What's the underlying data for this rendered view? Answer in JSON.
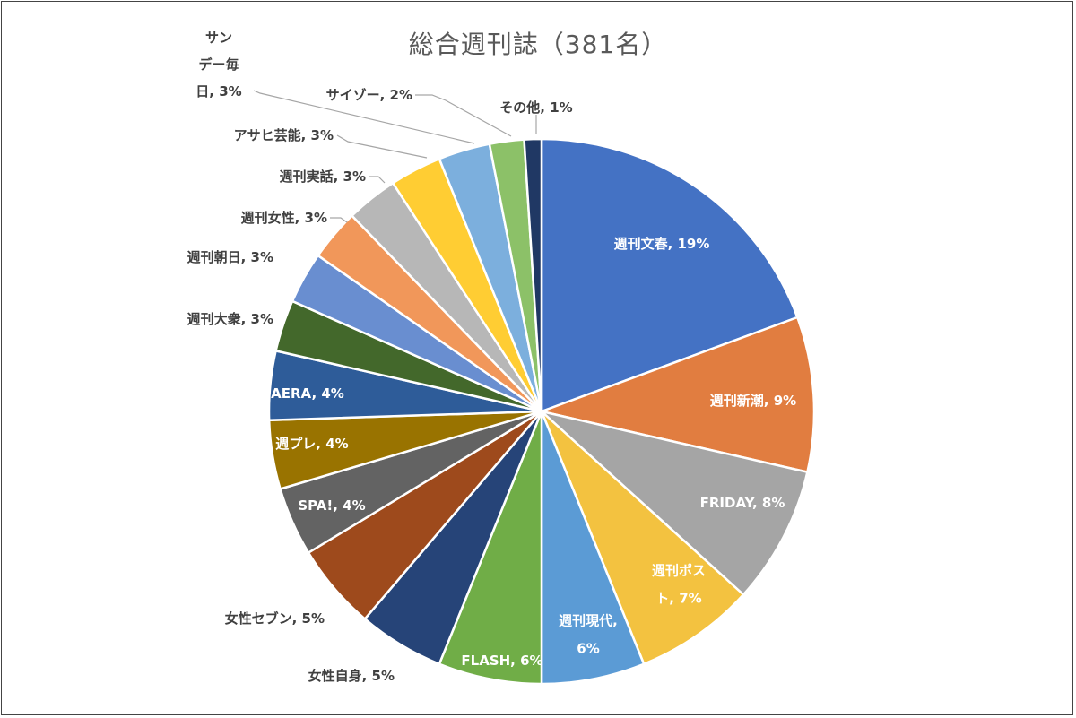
{
  "chart_data": {
    "type": "pie",
    "title": "総合週刊誌（381名）",
    "start_angle_deg": 0,
    "direction": "clockwise",
    "slices": [
      {
        "label": "週刊文春",
        "value": 19,
        "display": [
          "週刊文春, 19%"
        ],
        "color": "#4472C4",
        "label_color": "#ffffff"
      },
      {
        "label": "週刊新潮",
        "value": 9,
        "display": [
          "週刊新潮, 9%"
        ],
        "color": "#E17D40",
        "label_color": "#ffffff"
      },
      {
        "label": "FRIDAY",
        "value": 8,
        "display": [
          "FRIDAY, 8%"
        ],
        "color": "#A5A5A5",
        "label_color": "#ffffff"
      },
      {
        "label": "週刊ポスト",
        "value": 7,
        "display": [
          "週刊ポス",
          "ト, 7%"
        ],
        "color": "#F3C240",
        "label_color": "#ffffff"
      },
      {
        "label": "週刊現代",
        "value": 6,
        "display": [
          "週刊現代,",
          "6%"
        ],
        "color": "#5B9BD5",
        "label_color": "#ffffff"
      },
      {
        "label": "FLASH",
        "value": 6,
        "display": [
          "FLASH, 6%"
        ],
        "color": "#70AD47",
        "label_color": "#ffffff"
      },
      {
        "label": "女性自身",
        "value": 5,
        "display": [
          "女性自身, 5%"
        ],
        "color": "#264478",
        "label_color": "#404040"
      },
      {
        "label": "女性セブン",
        "value": 5,
        "display": [
          "女性セブン, 5%"
        ],
        "color": "#9E4A1C",
        "label_color": "#404040"
      },
      {
        "label": "SPA!",
        "value": 4,
        "display": [
          "SPA!, 4%"
        ],
        "color": "#636363",
        "label_color": "#ffffff"
      },
      {
        "label": "週プレ",
        "value": 4,
        "display": [
          "週プレ, 4%"
        ],
        "color": "#997300",
        "label_color": "#ffffff"
      },
      {
        "label": "AERA",
        "value": 4,
        "display": [
          "AERA, 4%"
        ],
        "color": "#2E5C99",
        "label_color": "#ffffff"
      },
      {
        "label": "週刊大衆",
        "value": 3,
        "display": [
          "週刊大衆, 3%"
        ],
        "color": "#43682B",
        "label_color": "#404040"
      },
      {
        "label": "週刊朝日",
        "value": 3,
        "display": [
          "週刊朝日, 3%"
        ],
        "color": "#698ED0",
        "label_color": "#404040"
      },
      {
        "label": "週刊女性",
        "value": 3,
        "display": [
          "週刊女性, 3%"
        ],
        "color": "#F1975A",
        "label_color": "#404040"
      },
      {
        "label": "週刊実話",
        "value": 3,
        "display": [
          "週刊実話, 3%"
        ],
        "color": "#B7B7B7",
        "label_color": "#404040"
      },
      {
        "label": "アサヒ芸能",
        "value": 3,
        "display": [
          "アサヒ芸能, 3%"
        ],
        "color": "#FFCD33",
        "label_color": "#404040"
      },
      {
        "label": "サンデー毎日",
        "value": 3,
        "display": [
          "サン",
          "デー毎",
          "日, 3%"
        ],
        "color": "#7CAFDD",
        "label_color": "#404040"
      },
      {
        "label": "サイゾー",
        "value": 2,
        "display": [
          "サイゾー, 2%"
        ],
        "color": "#8CC168",
        "label_color": "#404040"
      },
      {
        "label": "その他",
        "value": 1,
        "display": [
          "その他, 1%"
        ],
        "color": "#203864",
        "label_color": "#404040"
      }
    ],
    "legend": "none"
  }
}
